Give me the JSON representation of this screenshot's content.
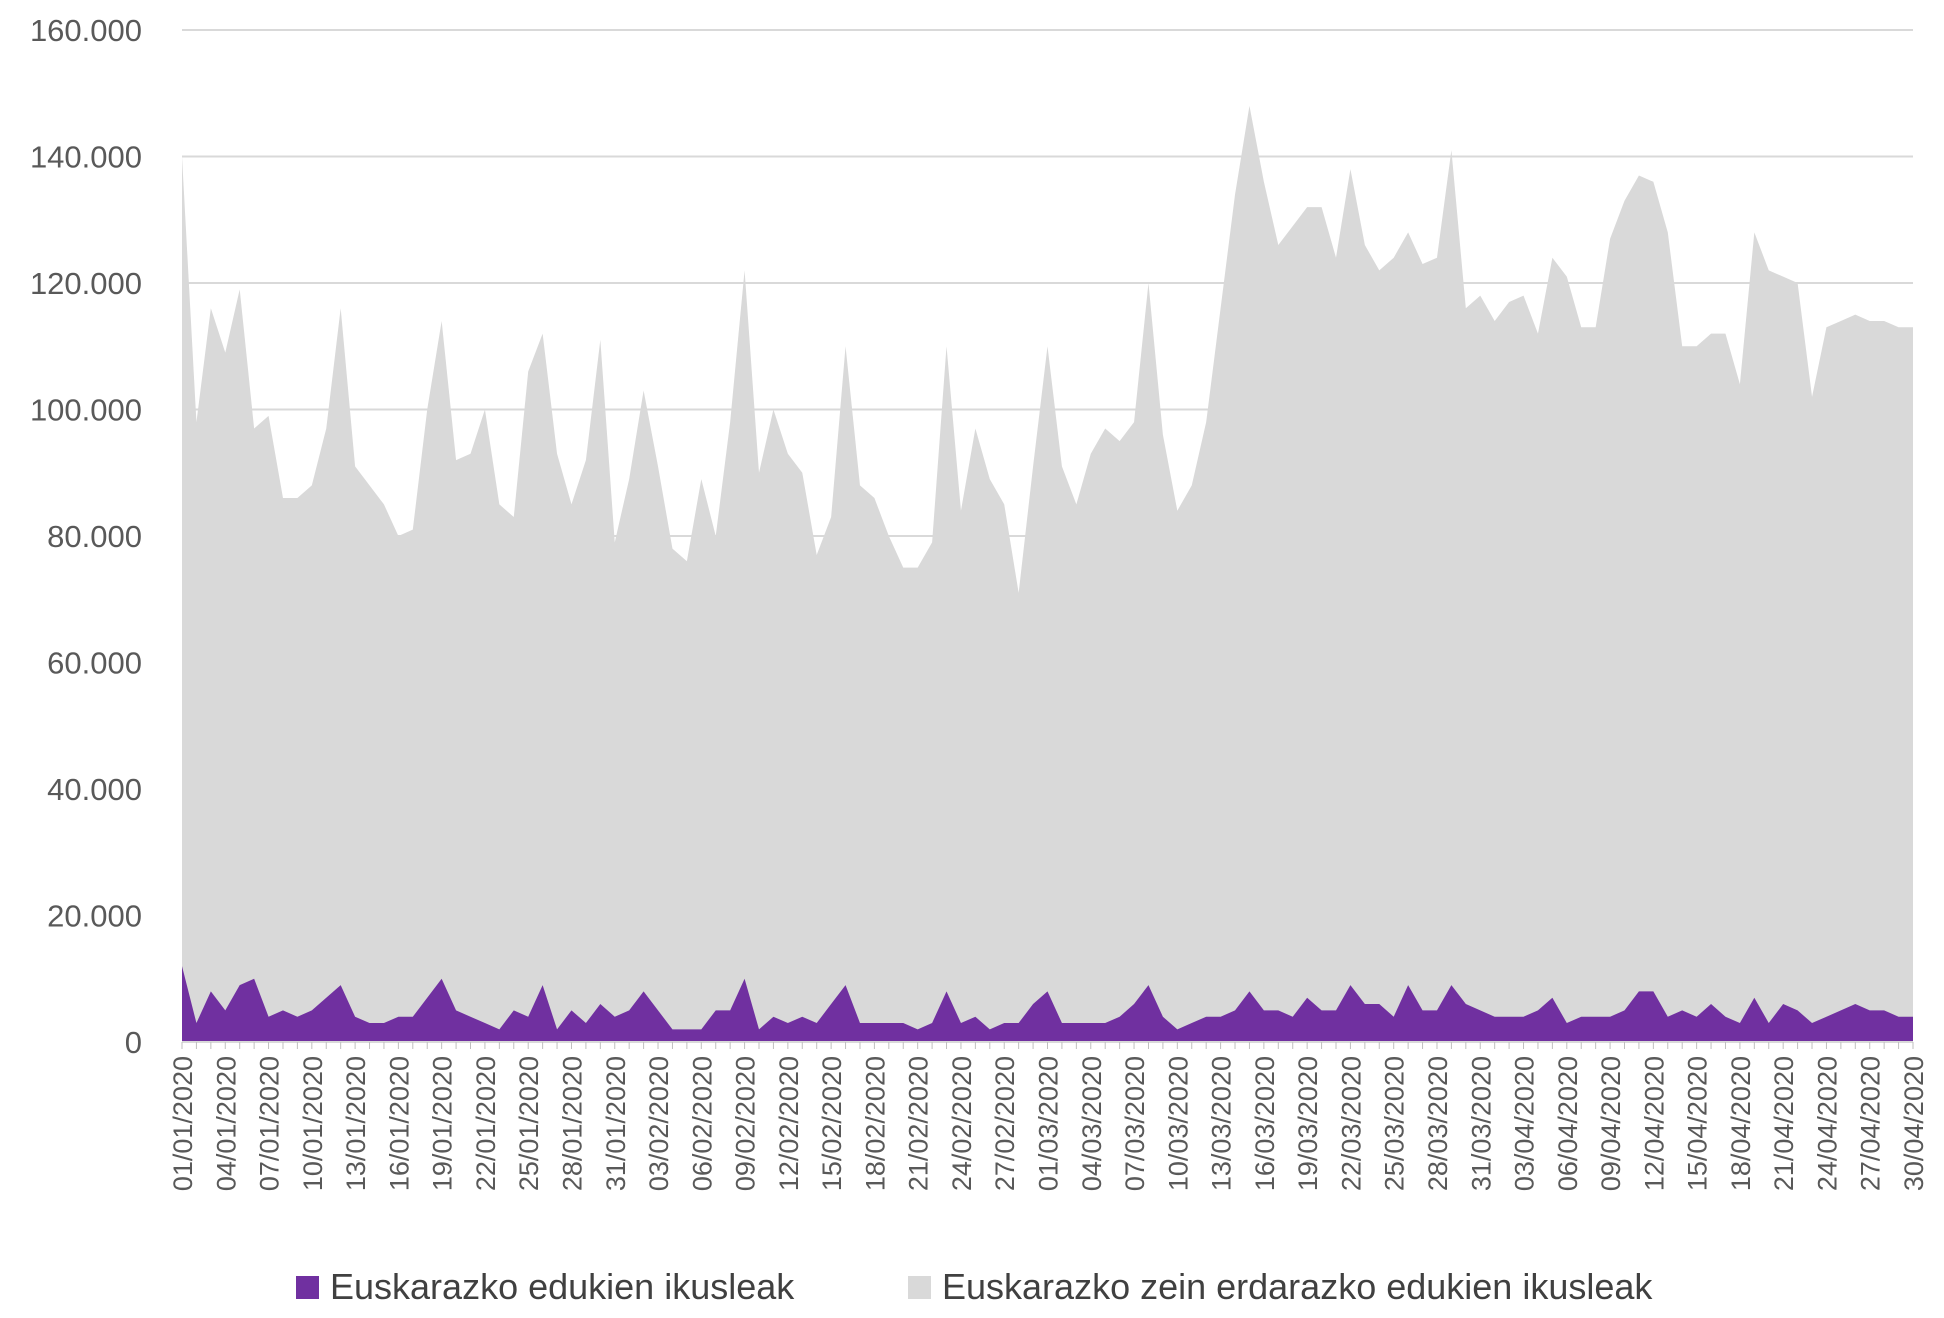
{
  "chart_data": {
    "type": "area",
    "stacked": false,
    "title": "",
    "xlabel": "",
    "ylabel": "",
    "ylim": [
      0,
      160000
    ],
    "yticks": [
      0,
      20000,
      40000,
      60000,
      80000,
      100000,
      120000,
      140000,
      160000
    ],
    "ytick_labels": [
      "0",
      "20.000",
      "40.000",
      "60.000",
      "80.000",
      "100.000",
      "120.000",
      "140.000",
      "160.000"
    ],
    "grid": true,
    "legend_position": "bottom",
    "x_start": "01/01/2020",
    "x_end": "30/04/2020",
    "xtick_labels": [
      "01/01/2020",
      "04/01/2020",
      "07/01/2020",
      "10/01/2020",
      "13/01/2020",
      "16/01/2020",
      "19/01/2020",
      "22/01/2020",
      "25/01/2020",
      "28/01/2020",
      "31/01/2020",
      "03/02/2020",
      "06/02/2020",
      "09/02/2020",
      "12/02/2020",
      "15/02/2020",
      "18/02/2020",
      "21/02/2020",
      "24/02/2020",
      "27/02/2020",
      "01/03/2020",
      "04/03/2020",
      "07/03/2020",
      "10/03/2020",
      "13/03/2020",
      "16/03/2020",
      "19/03/2020",
      "22/03/2020",
      "25/03/2020",
      "28/03/2020",
      "31/03/2020",
      "03/04/2020",
      "06/04/2020",
      "09/04/2020",
      "12/04/2020",
      "15/04/2020",
      "18/04/2020",
      "21/04/2020",
      "24/04/2020",
      "27/04/2020",
      "30/04/2020"
    ],
    "series": [
      {
        "name": "Euskarazko zein erdarazko edukien ikusleak",
        "color": "#d9d9d9",
        "values": [
          140000,
          98000,
          116000,
          109000,
          119000,
          97000,
          99000,
          86000,
          86000,
          88000,
          97000,
          116000,
          91000,
          88000,
          85000,
          80000,
          81000,
          100000,
          114000,
          92000,
          93000,
          100000,
          85000,
          83000,
          106000,
          112000,
          93000,
          85000,
          92000,
          111000,
          79000,
          89000,
          103000,
          91000,
          78000,
          76000,
          89000,
          80000,
          98000,
          122000,
          90000,
          100000,
          93000,
          90000,
          77000,
          83000,
          110000,
          88000,
          86000,
          80000,
          75000,
          75000,
          79000,
          110000,
          84000,
          97000,
          89000,
          85000,
          71000,
          91000,
          110000,
          91000,
          85000,
          93000,
          97000,
          95000,
          98000,
          120000,
          96000,
          84000,
          88000,
          98000,
          116000,
          134000,
          148000,
          136000,
          126000,
          129000,
          132000,
          132000,
          124000,
          138000,
          126000,
          122000,
          124000,
          128000,
          123000,
          124000,
          141000,
          116000,
          118000,
          114000,
          117000,
          118000,
          112000,
          124000,
          121000,
          113000,
          113000,
          127000,
          133000,
          137000,
          136000,
          128000,
          110000,
          110000,
          112000,
          112000,
          104000,
          128000,
          122000,
          121000,
          120000,
          102000,
          113000,
          114000,
          115000,
          114000,
          114000,
          113000,
          113000
        ]
      },
      {
        "name": "Euskarazko edukien ikusleak",
        "color": "#7030a0",
        "values": [
          12000,
          3000,
          8000,
          5000,
          9000,
          10000,
          4000,
          5000,
          4000,
          5000,
          7000,
          9000,
          4000,
          3000,
          3000,
          4000,
          4000,
          7000,
          10000,
          5000,
          4000,
          3000,
          2000,
          5000,
          4000,
          9000,
          2000,
          5000,
          3000,
          6000,
          4000,
          5000,
          8000,
          5000,
          2000,
          2000,
          2000,
          5000,
          5000,
          10000,
          2000,
          4000,
          3000,
          4000,
          3000,
          6000,
          9000,
          3000,
          3000,
          3000,
          3000,
          2000,
          3000,
          8000,
          3000,
          4000,
          2000,
          3000,
          3000,
          6000,
          8000,
          3000,
          3000,
          3000,
          3000,
          4000,
          6000,
          9000,
          4000,
          2000,
          3000,
          4000,
          4000,
          5000,
          8000,
          5000,
          5000,
          4000,
          7000,
          5000,
          5000,
          9000,
          6000,
          6000,
          4000,
          9000,
          5000,
          5000,
          9000,
          6000,
          5000,
          4000,
          4000,
          4000,
          5000,
          7000,
          3000,
          4000,
          4000,
          4000,
          5000,
          8000,
          8000,
          4000,
          5000,
          4000,
          6000,
          4000,
          3000,
          7000,
          3000,
          6000,
          5000,
          3000,
          4000,
          5000,
          6000,
          5000,
          5000,
          4000,
          4000
        ]
      }
    ]
  }
}
